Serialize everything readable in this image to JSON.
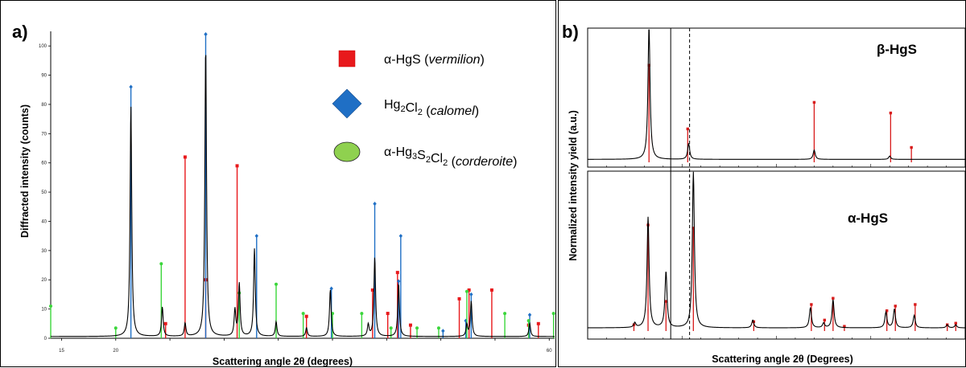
{
  "chart_data": [
    {
      "panel": "a",
      "type": "line",
      "panel_label": "a)",
      "xlabel": "Scattering angle 2θ (degrees)",
      "ylabel": "Diffracted intensity (counts)",
      "xlim": [
        14,
        60.5
      ],
      "ylim": [
        0,
        105
      ],
      "x_ticks": [
        15,
        20,
        25,
        30,
        35,
        40,
        45,
        50,
        55,
        60
      ],
      "x_tick_labels": [
        "15",
        "20",
        "",
        "",
        "",
        "",
        "",
        "",
        "",
        "60"
      ],
      "y_ticks": [
        0,
        10,
        20,
        30,
        40,
        50,
        60,
        70,
        80,
        90,
        100
      ],
      "y_tick_labels": [
        "0",
        "10",
        "20",
        "30",
        "40",
        "50",
        "60",
        "70",
        "80",
        "90",
        "100"
      ],
      "legend": [
        {
          "marker": "square",
          "color": "#e8191c",
          "label_main": "α-HgS (",
          "label_italic": "vermilion",
          "label_end": ")"
        },
        {
          "marker": "diamond",
          "color": "#1f6fc5",
          "label_main": "Hg",
          "sub1": "2",
          "label_mid": "Cl",
          "sub2": "2",
          "label_mid2": " (",
          "label_italic": "calomel",
          "label_end": ")"
        },
        {
          "marker": "circle",
          "color": "#8fd14f",
          "label_main": "α-Hg",
          "sub1": "3",
          "label_mid": "S",
          "sub2": "2",
          "label_mid2": "Cl",
          "sub3": "2",
          "label_mid3": " (",
          "label_italic": "corderoite",
          "label_end": ")"
        }
      ],
      "pattern_peaks": [
        {
          "x": 21.4,
          "h": 79
        },
        {
          "x": 24.3,
          "h": 10
        },
        {
          "x": 26.4,
          "h": 4.5
        },
        {
          "x": 28.3,
          "h": 99
        },
        {
          "x": 31.0,
          "h": 9
        },
        {
          "x": 31.4,
          "h": 18
        },
        {
          "x": 32.8,
          "h": 30
        },
        {
          "x": 34.8,
          "h": 5
        },
        {
          "x": 37.6,
          "h": 3
        },
        {
          "x": 39.8,
          "h": 16
        },
        {
          "x": 43.3,
          "h": 4
        },
        {
          "x": 43.9,
          "h": 27
        },
        {
          "x": 46.1,
          "h": 18
        },
        {
          "x": 52.4,
          "h": 4
        },
        {
          "x": 52.8,
          "h": 12
        },
        {
          "x": 58.2,
          "h": 4.5
        }
      ],
      "series": [
        {
          "name": "α-HgS (vermilion)",
          "color": "#e8191c",
          "marker": "square",
          "x": [
            24.6,
            26.4,
            28.3,
            31.2,
            37.6,
            43.7,
            45.1,
            46.0,
            47.2,
            51.7,
            52.6,
            54.7,
            58.1,
            59.0
          ],
          "values": [
            5,
            62,
            20,
            59,
            7.5,
            16.5,
            8.5,
            22.5,
            4.5,
            13.5,
            16.5,
            16.5,
            4.5,
            5
          ]
        },
        {
          "name": "Hg2Cl2 (calomel)",
          "color": "#1f6fc5",
          "marker": "diamond",
          "x": [
            21.4,
            28.3,
            33.0,
            39.9,
            43.9,
            46.1,
            46.3,
            50.2,
            52.3,
            52.8,
            58.2
          ],
          "values": [
            86,
            104,
            35,
            17,
            46,
            19.5,
            35,
            2.5,
            6,
            15,
            8
          ]
        },
        {
          "name": "α-Hg3S2Cl2 (corderoite)",
          "color": "#3bd63b",
          "marker": "circle",
          "x": [
            14.0,
            20.0,
            24.2,
            31.4,
            34.8,
            37.3,
            40.0,
            42.7,
            45.4,
            47.8,
            49.8,
            52.4,
            55.9,
            58.1,
            60.4
          ],
          "values": [
            11,
            3.5,
            25.5,
            15.5,
            18.5,
            8.5,
            8.5,
            8.5,
            3.5,
            3.5,
            3.5,
            16,
            8.5,
            6,
            8.5
          ]
        }
      ]
    },
    {
      "panel": "b",
      "type": "line",
      "panel_label": "b)",
      "xlabel": "Scattering angle 2θ (Degrees)",
      "ylabel": "Normalized intensity yield (a.u.)",
      "xlim": [
        20,
        60
      ],
      "subplots": [
        {
          "name": "β-HgS",
          "label": "β-HgS",
          "pattern_peaks": [
            {
              "x": 26.5,
              "h": 1.0
            },
            {
              "x": 30.7,
              "h": 0.12
            },
            {
              "x": 44.0,
              "h": 0.07
            },
            {
              "x": 52.0,
              "h": 0.025
            }
          ],
          "sticks": {
            "color": "#d81b1b",
            "x": [
              26.5,
              30.6,
              44.0,
              52.1,
              54.3
            ],
            "values": [
              0.72,
              0.24,
              0.44,
              0.36,
              0.1
            ]
          }
        },
        {
          "name": "α-HgS",
          "label": "α-HgS",
          "pattern_peaks": [
            {
              "x": 25.0,
              "h": 0.03
            },
            {
              "x": 26.4,
              "h": 0.71
            },
            {
              "x": 28.3,
              "h": 0.36
            },
            {
              "x": 31.2,
              "h": 1.0
            },
            {
              "x": 37.5,
              "h": 0.05
            },
            {
              "x": 43.6,
              "h": 0.13
            },
            {
              "x": 45.0,
              "h": 0.03
            },
            {
              "x": 46.0,
              "h": 0.18
            },
            {
              "x": 51.6,
              "h": 0.1
            },
            {
              "x": 52.5,
              "h": 0.12
            },
            {
              "x": 54.6,
              "h": 0.08
            },
            {
              "x": 58.1,
              "h": 0.02
            },
            {
              "x": 59.0,
              "h": 0.02
            }
          ],
          "sticks": {
            "color": "#d81b1b",
            "x": [
              24.9,
              26.4,
              28.3,
              31.2,
              37.6,
              43.7,
              45.1,
              46.0,
              47.2,
              51.7,
              52.6,
              54.7,
              58.1,
              59.0
            ],
            "values": [
              0.03,
              0.67,
              0.18,
              0.65,
              0.05,
              0.16,
              0.06,
              0.2,
              0.02,
              0.12,
              0.15,
              0.16,
              0.03,
              0.04
            ]
          }
        }
      ],
      "vertical_lines": [
        {
          "x": 28.8,
          "style": "solid"
        },
        {
          "x": 30.8,
          "style": "dashed"
        }
      ]
    }
  ]
}
